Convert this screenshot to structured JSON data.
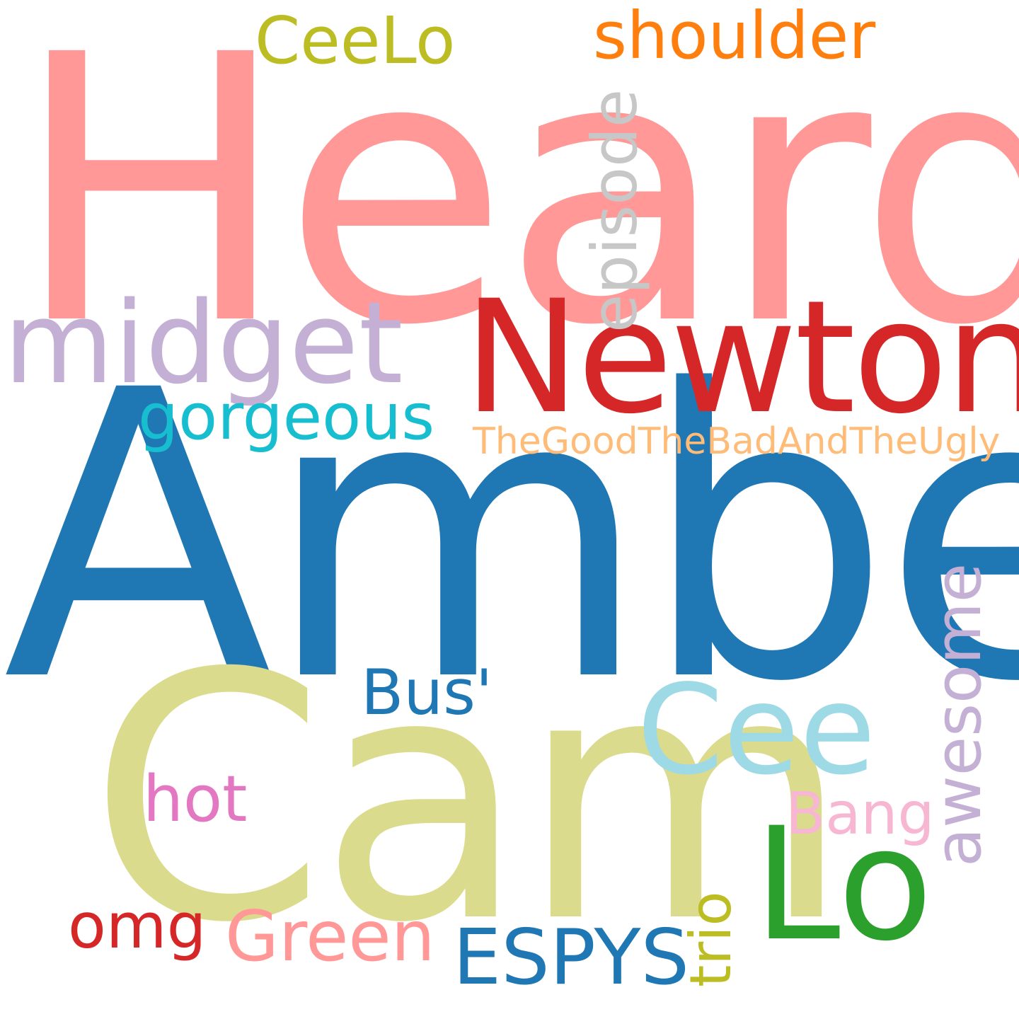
{
  "words": {
    "heard": {
      "text": "Heard",
      "color": "#ff9896"
    },
    "amber": {
      "text": "Amber",
      "color": "#1f77b4"
    },
    "cam": {
      "text": "Cam",
      "color": "#dbdb8d"
    },
    "newton": {
      "text": "Newton",
      "color": "#d62728"
    },
    "midget": {
      "text": "midget",
      "color": "#c5b0d5"
    },
    "cee": {
      "text": "Cee",
      "color": "#9edae5"
    },
    "lo": {
      "text": "Lo",
      "color": "#2ca02c"
    },
    "shoulder": {
      "text": "shoulder",
      "color": "#ff7f0e"
    },
    "ceelo": {
      "text": "CeeLo",
      "color": "#bcbd22"
    },
    "episode": {
      "text": "episode",
      "color": "#c7c7c7"
    },
    "gorgeous": {
      "text": "gorgeous",
      "color": "#17becf"
    },
    "tgtbatu": {
      "text": "TheGoodTheBadAndTheUgly",
      "color": "#ffbb78"
    },
    "awesome": {
      "text": "awesome",
      "color": "#c5b0d5"
    },
    "bus": {
      "text": "Bus'",
      "color": "#1f77b4"
    },
    "hot": {
      "text": "hot",
      "color": "#e377c2"
    },
    "bang": {
      "text": "Bang",
      "color": "#f7b6d2"
    },
    "omg": {
      "text": "omg",
      "color": "#d62728"
    },
    "green": {
      "text": "Green",
      "color": "#ff9896"
    },
    "espys": {
      "text": "ESPYS",
      "color": "#1f77b4"
    },
    "trio": {
      "text": "trio",
      "color": "#bcbd22"
    }
  }
}
